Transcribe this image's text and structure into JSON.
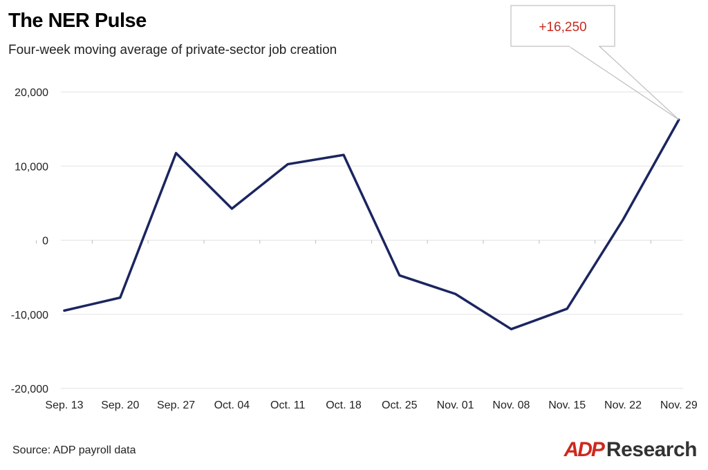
{
  "title": "The NER Pulse",
  "subtitle": "Four-week moving average of private-sector job creation",
  "source": "Source: ADP payroll data",
  "brand": {
    "logo": "ADP",
    "name": "Research",
    "logo_color": "#d0271d"
  },
  "colors": {
    "line": "#1b2560",
    "grid": "#e2e2e2",
    "callout_text": "#c8281e",
    "callout_border": "#bdbdbd"
  },
  "chart_data": {
    "type": "line",
    "title": "The NER Pulse",
    "subtitle": "Four-week moving average of private-sector job creation",
    "categories": [
      "Sep. 13",
      "Sep. 20",
      "Sep. 27",
      "Oct. 04",
      "Oct. 11",
      "Oct. 18",
      "Oct. 25",
      "Nov. 01",
      "Nov. 08",
      "Nov. 15",
      "Nov. 22",
      "Nov. 29"
    ],
    "series": [
      {
        "values": [
          -9500,
          -7750,
          11750,
          4250,
          10250,
          11500,
          -4750,
          -7250,
          -12000,
          -9250,
          2750,
          16250
        ]
      }
    ],
    "ylim": [
      -20000,
      20000
    ],
    "yticks": [
      20000,
      10000,
      0,
      -10000,
      -20000
    ],
    "ytick_labels": [
      "20,000",
      "10,000",
      "0",
      "-10,000",
      "-20,000"
    ],
    "grid": true,
    "annotation": {
      "text": "+16,250",
      "category": "Nov. 29",
      "value": 16250
    }
  }
}
